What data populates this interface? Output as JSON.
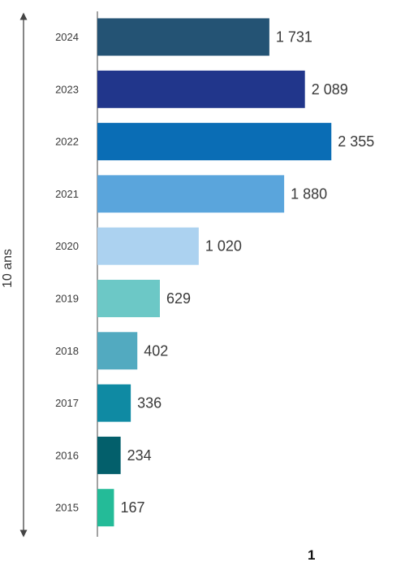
{
  "chart_data": {
    "type": "bar",
    "orientation": "horizontal",
    "categories": [
      "2024",
      "2023",
      "2022",
      "2021",
      "2020",
      "2019",
      "2018",
      "2017",
      "2016",
      "2015"
    ],
    "values": [
      1731,
      2089,
      2355,
      1880,
      1020,
      629,
      402,
      336,
      234,
      167
    ],
    "value_labels": [
      "1 731",
      "2 089",
      "2 355",
      "1 880",
      "1 020",
      "629",
      "402",
      "336",
      "234",
      "167"
    ],
    "bar_colors": [
      "#245374",
      "#21368b",
      "#0a6db5",
      "#5aa5dc",
      "#acd2f0",
      "#6cc8c6",
      "#52aac0",
      "#0f8aa3",
      "#035f6b",
      "#24bb98"
    ],
    "title": "",
    "xlabel": "",
    "ylabel": "",
    "xlim": [
      0,
      2500
    ],
    "grid": false,
    "legend": "none",
    "side_annotation": "10 ans",
    "side_annotation_style": "double-headed arrow spanning all years"
  },
  "page": {
    "number": "1"
  },
  "colors": {
    "axis": "#444444",
    "text": "#3a3a3a"
  }
}
